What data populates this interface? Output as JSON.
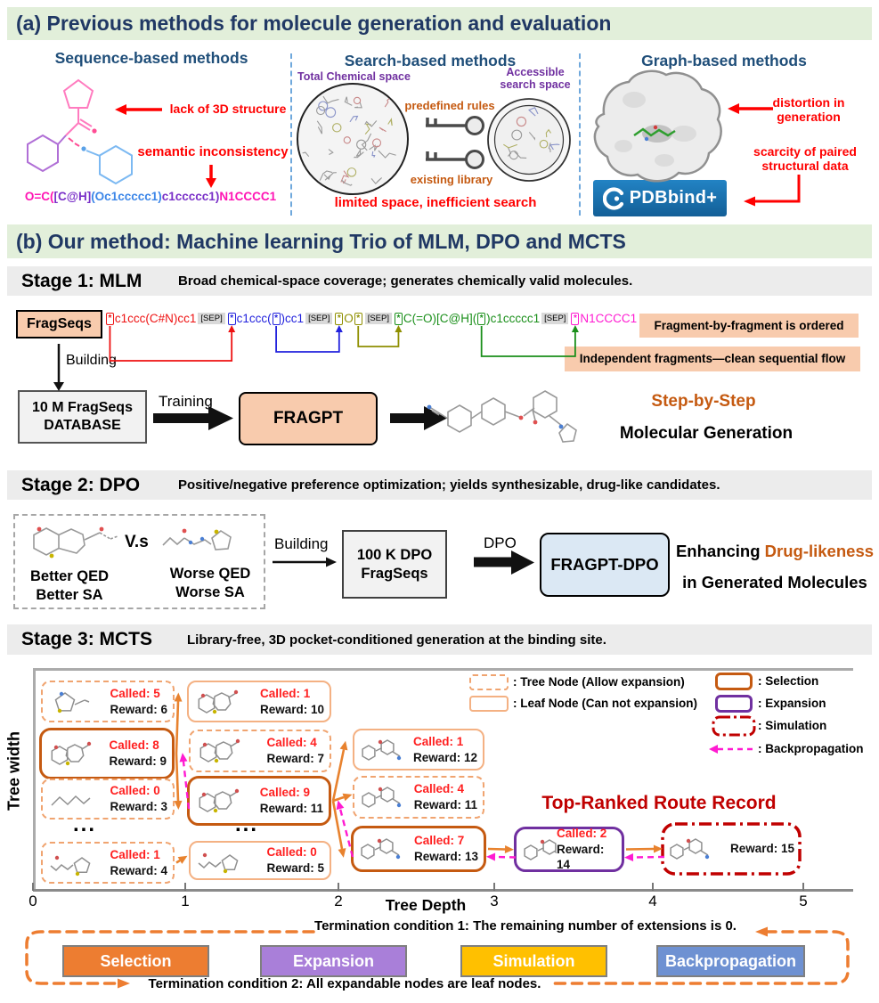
{
  "header_a": "(a) Previous methods for molecule generation and evaluation",
  "header_b": "(b) Our method: Machine learning Trio of MLM, DPO and MCTS",
  "panel_a": {
    "sequence": {
      "title": "Sequence-based methods",
      "ann_3d": "lack of 3D structure",
      "ann_semantic": "semantic inconsistency",
      "smiles": [
        {
          "t": "O=C(",
          "c": "#ff14b4"
        },
        {
          "t": "[C@H]",
          "c": "#7a30c8"
        },
        {
          "t": "(Oc1ccccc1)",
          "c": "#3c86e8"
        },
        {
          "t": "c1ccccc1",
          "c": "#7a30c8"
        },
        {
          "t": ")",
          "c": "#7a30c8"
        },
        {
          "t": "N1CCCC1",
          "c": "#ff14b4"
        }
      ]
    },
    "search": {
      "title": "Search-based methods",
      "total_space": "Total Chemical space",
      "accessible_space": "Accessible search space",
      "rules": "predefined rules",
      "library": "existing library",
      "caption": "limited space, inefficient search"
    },
    "graph": {
      "title": "Graph-based methods",
      "ann_distortion": "distortion in generation",
      "ann_scarcity": "scarcity of paired structural data",
      "logo": "PDBbind+"
    }
  },
  "stage1": {
    "label": "Stage 1:  MLM",
    "desc": "Broad chemical-space coverage; generates chemically valid molecules.",
    "fragseqs": "FragSeqs",
    "star": "*",
    "sep": "[SEP]",
    "fragments": [
      {
        "color": "#ee1111",
        "tokens": [
          {
            "s": 1
          },
          {
            "t": "c1ccc(C#N)cc1"
          }
        ]
      },
      {
        "color": "#2222dd",
        "tokens": [
          {
            "s": 1
          },
          {
            "t": "c1ccc("
          },
          {
            "s": 1
          },
          {
            "t": ")cc1"
          }
        ]
      },
      {
        "color": "#8f8f00",
        "tokens": [
          {
            "s": 1
          },
          {
            "t": "O"
          },
          {
            "s": 1
          }
        ]
      },
      {
        "color": "#1a8f1a",
        "tokens": [
          {
            "s": 1
          },
          {
            "t": "C(=O)[C@H]("
          },
          {
            "s": 1
          },
          {
            "t": ")c1ccccc1"
          }
        ]
      },
      {
        "color": "#ff1ad1",
        "tokens": [
          {
            "s": 1
          },
          {
            "t": "N1CCCC1"
          }
        ]
      }
    ],
    "links": [
      {
        "a": 0,
        "b": 1,
        "c": "#ee1111",
        "d": 40
      },
      {
        "a": 2,
        "b": 3,
        "c": "#2222dd",
        "d": 30
      },
      {
        "a": 4,
        "b": 5,
        "c": "#8f8f00",
        "d": 24
      },
      {
        "a": 6,
        "b": 7,
        "c": "#1a8f1a",
        "d": 35
      }
    ],
    "building": "Building",
    "database_line1": "10 M FragSeqs",
    "database_line2": "DATABASE",
    "training": "Training",
    "model": "FRAGPT",
    "note1": "Fragment-by-fragment is ordered",
    "note2": "Independent fragments—clean sequential flow",
    "result1": "Step-by-Step",
    "result2": "Molecular Generation"
  },
  "stage2": {
    "label": "Stage 2:  DPO",
    "desc": "Positive/negative preference optimization; yields synthesizable, drug-like candidates.",
    "vs": "V.s",
    "better_qed": "Better QED",
    "better_sa": "Better SA",
    "worse_qed": "Worse QED",
    "worse_sa": "Worse SA",
    "building": "Building",
    "db_line1": "100 K DPO",
    "db_line2": "FragSeqs",
    "dpo": "DPO",
    "model": "FRAGPT-DPO",
    "result_black1": "Enhancing ",
    "result_accent": "Drug-likeness",
    "result_line2": "in Generated Molecules"
  },
  "stage3": {
    "label": "Stage 3: MCTS",
    "desc": "Library-free, 3D pocket-conditioned generation at the binding site.",
    "ylabel": "Tree width",
    "xlabel": "Tree Depth",
    "ticks": [
      "0",
      "1",
      "2",
      "3",
      "4",
      "5"
    ],
    "ellipsis": "...",
    "called_prefix": "Called: ",
    "reward_prefix": "Reward: ",
    "top_ranked": "Top-Ranked Route Record",
    "legend": {
      "tree": ": Tree Node (Allow expansion)",
      "leaf": ": Leaf Node (Can not expansion)",
      "selection": ": Selection",
      "expansion": ": Expansion",
      "simulation": ": Simulation",
      "backprop": ": Backpropagation"
    },
    "nodes": [
      {
        "id": "A",
        "type": "tree",
        "called": 5,
        "reward": 6,
        "mol": "ring1"
      },
      {
        "id": "E",
        "type": "leaf",
        "called": 1,
        "reward": 10,
        "mol": "fused"
      },
      {
        "id": "B",
        "type": "selection",
        "called": 8,
        "reward": 9,
        "mol": "fused"
      },
      {
        "id": "F",
        "type": "tree",
        "called": 4,
        "reward": 7,
        "mol": "fused"
      },
      {
        "id": "I",
        "type": "leaf",
        "called": 1,
        "reward": 12,
        "mol": "long"
      },
      {
        "id": "C",
        "type": "tree",
        "called": 0,
        "reward": 3,
        "mol": "chain"
      },
      {
        "id": "G",
        "type": "selection",
        "called": 9,
        "reward": 11,
        "mol": "fused"
      },
      {
        "id": "J",
        "type": "tree",
        "called": 4,
        "reward": 11,
        "mol": "long"
      },
      {
        "id": "D",
        "type": "tree",
        "called": 1,
        "reward": 4,
        "mol": "chainring"
      },
      {
        "id": "H",
        "type": "leaf",
        "called": 0,
        "reward": 5,
        "mol": "chainring"
      },
      {
        "id": "K",
        "type": "selection",
        "called": 7,
        "reward": 13,
        "mol": "long"
      },
      {
        "id": "L",
        "type": "expansion",
        "called": 2,
        "reward": 14,
        "mol": "long"
      },
      {
        "id": "M",
        "type": "simulation",
        "called": null,
        "reward": 15,
        "mol": "long"
      }
    ],
    "edges": [
      [
        "B",
        "E"
      ],
      [
        "B",
        "G"
      ],
      [
        "D",
        "H"
      ],
      [
        "G",
        "I"
      ],
      [
        "G",
        "J"
      ],
      [
        "G",
        "K"
      ],
      [
        "K",
        "L"
      ],
      [
        "L",
        "M"
      ]
    ],
    "back_edges": [
      [
        "G",
        "B"
      ],
      [
        "K",
        "G"
      ],
      [
        "L",
        "K"
      ],
      [
        "M",
        "L"
      ]
    ],
    "colors": {
      "edge": "#e8822e",
      "backprop": "#ff1ad1",
      "simulation": "#c00000",
      "selection_border": "#c55a11",
      "expansion_border": "#7030a0",
      "leaf_border": "#f4b183",
      "enclosure": "#ed7d31"
    },
    "term1": "Termination condition 1:  The remaining number of extensions is 0.",
    "term2": "Termination condition 2: All expandable nodes are leaf nodes.",
    "flow": [
      {
        "label": "Selection",
        "color": "#ed7d31"
      },
      {
        "label": "Expansion",
        "color": "#a97fd9"
      },
      {
        "label": "Simulation",
        "color": "#ffc000"
      },
      {
        "label": "Backpropagation",
        "color": "#6e91d2"
      }
    ]
  }
}
